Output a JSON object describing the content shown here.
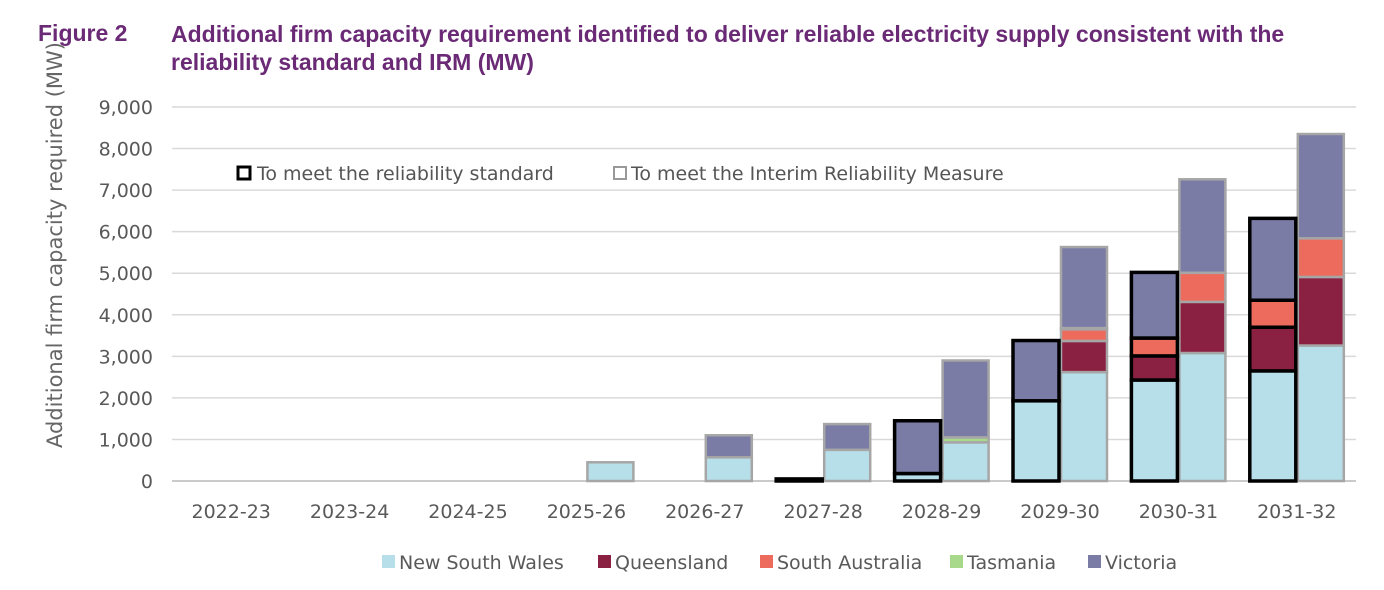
{
  "figure": {
    "label": "Figure 2",
    "title": "Additional firm capacity requirement identified to deliver reliable electricity supply consistent with the reliability standard and IRM (MW)"
  },
  "chart_data": {
    "type": "bar",
    "subtype": "stacked, paired",
    "ylabel": "Additional  firm capacity required (MW)",
    "xlabel": "",
    "ylim": [
      0,
      9000
    ],
    "yticks": [
      0,
      1000,
      2000,
      3000,
      4000,
      5000,
      6000,
      7000,
      8000,
      9000
    ],
    "ytick_labels": [
      "0",
      "1,000",
      "2,000",
      "3,000",
      "4,000",
      "5,000",
      "6,000",
      "7,000",
      "8,000",
      "9,000"
    ],
    "categories": [
      "2022-23",
      "2023-24",
      "2024-25",
      "2025-26",
      "2026-27",
      "2027-28",
      "2028-29",
      "2029-30",
      "2030-31",
      "2031-32"
    ],
    "gridlines": true,
    "group_legend": {
      "reliability_standard": "To meet the reliability standard",
      "irm": "To meet the Interim Reliability Measure"
    },
    "series_colors": {
      "New South Wales": "#b7dfe9",
      "Queensland": "#8b2142",
      "South Australia": "#ec6b5c",
      "Tasmania": "#a8d98a",
      "Victoria": "#7a7ca6"
    },
    "legend": [
      "New South Wales",
      "Queensland",
      "South Australia",
      "Tasmania",
      "Victoria"
    ],
    "reliability_standard": {
      "New South Wales": [
        0,
        0,
        0,
        0,
        0,
        0,
        180,
        1930,
        2430,
        2650
      ],
      "Queensland": [
        0,
        0,
        0,
        0,
        0,
        0,
        0,
        0,
        580,
        1050
      ],
      "South Australia": [
        0,
        0,
        0,
        0,
        0,
        0,
        0,
        0,
        430,
        650
      ],
      "Tasmania": [
        0,
        0,
        0,
        0,
        0,
        0,
        0,
        0,
        0,
        0
      ],
      "Victoria": [
        0,
        0,
        0,
        0,
        0,
        50,
        1270,
        1450,
        1580,
        1970
      ]
    },
    "irm": {
      "New South Wales": [
        0,
        0,
        0,
        450,
        570,
        750,
        930,
        2620,
        3080,
        3260
      ],
      "Queensland": [
        0,
        0,
        0,
        0,
        0,
        0,
        0,
        750,
        1230,
        1650
      ],
      "South Australia": [
        0,
        0,
        0,
        0,
        0,
        0,
        0,
        280,
        700,
        930
      ],
      "Tasmania": [
        0,
        0,
        0,
        0,
        0,
        0,
        120,
        30,
        0,
        0
      ],
      "Victoria": [
        0,
        0,
        0,
        0,
        530,
        620,
        1850,
        1950,
        2250,
        2510
      ]
    }
  }
}
